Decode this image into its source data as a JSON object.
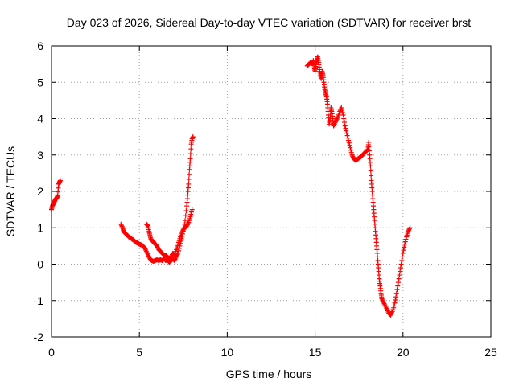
{
  "colors": {
    "series": "#ff0000",
    "grid": "#a0a0a0",
    "axis": "#000000",
    "background": "#ffffff"
  },
  "chart_data": {
    "type": "scatter",
    "title": "Day 023 of 2026, Sidereal Day-to-day VTEC variation (SDTVAR) for receiver brst",
    "xlabel": "GPS time / hours",
    "ylabel": "SDTVAR / TECUs",
    "xlim": [
      0,
      25
    ],
    "ylim": [
      -2,
      6
    ],
    "xticks": [
      0,
      5,
      10,
      15,
      20,
      25
    ],
    "yticks": [
      -2,
      -1,
      0,
      1,
      2,
      3,
      4,
      5,
      6
    ],
    "grid": true,
    "legend": "none",
    "marker": "plus",
    "series": [
      {
        "color": "#ff0000",
        "segments": [
          [
            [
              0.0,
              1.5
            ],
            [
              0.05,
              1.6
            ],
            [
              0.1,
              1.65
            ],
            [
              0.15,
              1.7
            ],
            [
              0.2,
              1.75
            ],
            [
              0.25,
              1.8
            ],
            [
              0.3,
              1.82
            ],
            [
              0.35,
              1.88
            ],
            [
              0.4,
              2.2
            ],
            [
              0.45,
              2.25
            ],
            [
              0.5,
              2.3
            ]
          ],
          [
            [
              3.95,
              1.1
            ],
            [
              4.05,
              1.0
            ],
            [
              4.1,
              0.9
            ],
            [
              4.2,
              0.85
            ],
            [
              4.3,
              0.8
            ],
            [
              4.4,
              0.75
            ],
            [
              4.5,
              0.72
            ],
            [
              4.6,
              0.68
            ],
            [
              4.7,
              0.65
            ],
            [
              4.8,
              0.6
            ],
            [
              4.9,
              0.58
            ],
            [
              5.0,
              0.55
            ],
            [
              5.1,
              0.53
            ],
            [
              5.2,
              0.5
            ],
            [
              5.3,
              0.45
            ],
            [
              5.4,
              0.35
            ],
            [
              5.5,
              0.25
            ],
            [
              5.6,
              0.15
            ],
            [
              5.7,
              0.1
            ],
            [
              5.8,
              0.08
            ],
            [
              5.9,
              0.1
            ],
            [
              6.0,
              0.12
            ],
            [
              6.1,
              0.1
            ],
            [
              6.2,
              0.12
            ],
            [
              6.3,
              0.1
            ],
            [
              6.4,
              0.15
            ],
            [
              6.5,
              0.1
            ],
            [
              6.6,
              0.12
            ],
            [
              6.7,
              0.05
            ],
            [
              6.8,
              0.1
            ],
            [
              6.9,
              0.15
            ],
            [
              7.0,
              0.1
            ],
            [
              7.1,
              0.2
            ],
            [
              7.2,
              0.3
            ],
            [
              7.3,
              0.5
            ],
            [
              7.4,
              0.7
            ],
            [
              7.5,
              0.9
            ],
            [
              7.6,
              1.2
            ],
            [
              7.7,
              1.6
            ],
            [
              7.75,
              1.9
            ],
            [
              7.8,
              2.2
            ],
            [
              7.85,
              2.6
            ],
            [
              7.9,
              2.9
            ],
            [
              7.95,
              3.3
            ],
            [
              8.0,
              3.45
            ],
            [
              8.05,
              3.5
            ]
          ],
          [
            [
              5.4,
              1.1
            ],
            [
              5.5,
              1.05
            ],
            [
              5.55,
              0.9
            ],
            [
              5.6,
              0.8
            ],
            [
              5.65,
              0.7
            ],
            [
              5.7,
              0.65
            ],
            [
              5.8,
              0.62
            ],
            [
              5.9,
              0.55
            ],
            [
              6.0,
              0.5
            ],
            [
              6.1,
              0.4
            ],
            [
              6.2,
              0.35
            ],
            [
              6.3,
              0.3
            ],
            [
              6.4,
              0.25
            ],
            [
              6.5,
              0.25
            ],
            [
              6.6,
              0.2
            ],
            [
              6.7,
              0.15
            ],
            [
              6.8,
              0.2
            ],
            [
              6.9,
              0.3
            ],
            [
              7.0,
              0.25
            ],
            [
              7.1,
              0.4
            ],
            [
              7.2,
              0.55
            ],
            [
              7.3,
              0.7
            ],
            [
              7.4,
              0.85
            ],
            [
              7.5,
              0.95
            ],
            [
              7.6,
              1.0
            ],
            [
              7.7,
              1.05
            ],
            [
              7.8,
              1.15
            ],
            [
              7.9,
              1.3
            ],
            [
              8.0,
              1.5
            ]
          ],
          [
            [
              14.55,
              5.45
            ],
            [
              14.65,
              5.5
            ],
            [
              14.75,
              5.55
            ],
            [
              14.85,
              5.5
            ],
            [
              14.9,
              5.6
            ],
            [
              14.95,
              5.4
            ],
            [
              15.0,
              5.3
            ],
            [
              15.05,
              5.5
            ],
            [
              15.1,
              5.6
            ],
            [
              15.15,
              5.7
            ],
            [
              15.2,
              5.55
            ],
            [
              15.25,
              5.35
            ],
            [
              15.3,
              5.2
            ],
            [
              15.35,
              5.1
            ],
            [
              15.4,
              5.3
            ],
            [
              15.45,
              5.2
            ],
            [
              15.5,
              5.0
            ],
            [
              15.55,
              4.8
            ],
            [
              15.6,
              4.7
            ],
            [
              15.65,
              4.6
            ],
            [
              15.7,
              4.4
            ],
            [
              15.75,
              4.1
            ],
            [
              15.8,
              3.85
            ],
            [
              15.85,
              4.0
            ],
            [
              15.9,
              4.3
            ],
            [
              15.95,
              4.2
            ],
            [
              16.0,
              4.0
            ],
            [
              16.05,
              3.8
            ],
            [
              16.1,
              3.85
            ],
            [
              16.2,
              3.95
            ],
            [
              16.3,
              4.05
            ],
            [
              16.4,
              4.2
            ],
            [
              16.5,
              4.3
            ],
            [
              16.6,
              4.1
            ],
            [
              16.7,
              3.8
            ],
            [
              16.8,
              3.6
            ],
            [
              16.9,
              3.4
            ],
            [
              17.0,
              3.2
            ],
            [
              17.1,
              3.0
            ],
            [
              17.2,
              2.9
            ],
            [
              17.3,
              2.85
            ],
            [
              17.4,
              2.88
            ],
            [
              17.5,
              2.92
            ],
            [
              17.6,
              2.95
            ],
            [
              17.7,
              3.0
            ],
            [
              17.8,
              3.05
            ],
            [
              17.9,
              3.1
            ],
            [
              18.0,
              3.15
            ],
            [
              18.05,
              3.35
            ],
            [
              18.1,
              3.0
            ],
            [
              18.15,
              2.7
            ],
            [
              18.2,
              2.3
            ],
            [
              18.25,
              2.0
            ],
            [
              18.3,
              1.7
            ],
            [
              18.35,
              1.4
            ],
            [
              18.4,
              1.1
            ],
            [
              18.45,
              0.8
            ],
            [
              18.5,
              0.5
            ],
            [
              18.55,
              0.2
            ],
            [
              18.6,
              -0.1
            ],
            [
              18.65,
              -0.4
            ],
            [
              18.7,
              -0.6
            ],
            [
              18.75,
              -0.8
            ],
            [
              18.8,
              -0.95
            ],
            [
              18.9,
              -1.05
            ],
            [
              19.0,
              -1.15
            ],
            [
              19.1,
              -1.25
            ],
            [
              19.2,
              -1.35
            ],
            [
              19.3,
              -1.4
            ],
            [
              19.4,
              -1.3
            ],
            [
              19.5,
              -1.15
            ],
            [
              19.6,
              -0.9
            ],
            [
              19.7,
              -0.6
            ],
            [
              19.8,
              -0.3
            ],
            [
              19.9,
              0.0
            ],
            [
              20.0,
              0.3
            ],
            [
              20.1,
              0.55
            ],
            [
              20.2,
              0.75
            ],
            [
              20.3,
              0.9
            ],
            [
              20.4,
              1.0
            ]
          ]
        ]
      }
    ]
  }
}
